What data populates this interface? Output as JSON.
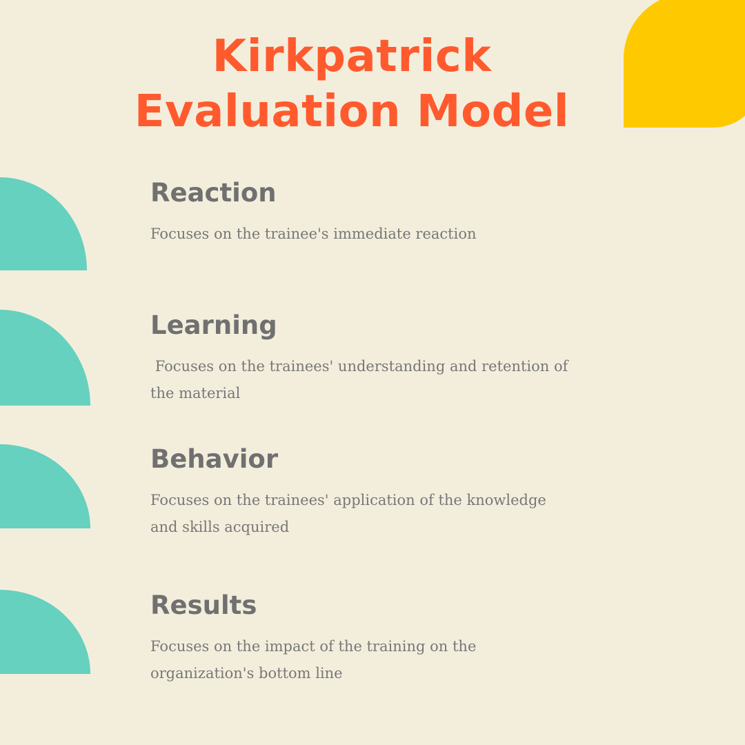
{
  "title": {
    "line1": "Kirkpatrick",
    "line2": "Evaluation Model"
  },
  "colors": {
    "background": "#f3eedc",
    "title": "#ff5a2e",
    "accent_yellow": "#ffc900",
    "accent_teal": "#65d1be",
    "text": "#707070"
  },
  "sections": [
    {
      "heading": "Reaction",
      "body": "Focuses on the trainee's immediate reaction"
    },
    {
      "heading": "Learning",
      "body": " Focuses on the trainees' understanding and retention of the material"
    },
    {
      "heading": "Behavior",
      "body": "Focuses on the trainees' application of the knowledge and skills acquired"
    },
    {
      "heading": "Results",
      "body": "Focuses on the impact of the training on the organization's bottom line"
    }
  ]
}
